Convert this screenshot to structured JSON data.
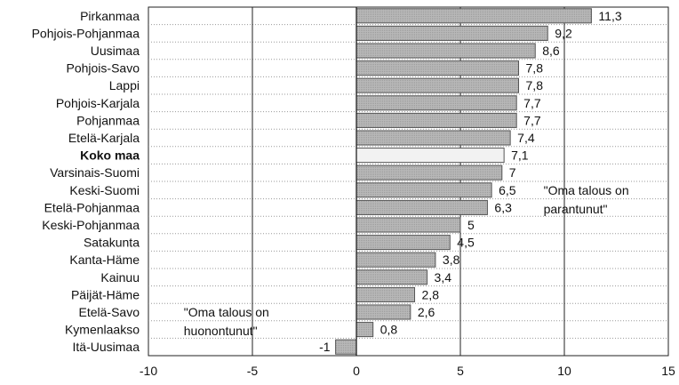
{
  "chart_data": {
    "type": "bar",
    "orientation": "horizontal",
    "categories": [
      "Pirkanmaa",
      "Pohjois-Pohjanmaa",
      "Uusimaa",
      "Pohjois-Savo",
      "Lappi",
      "Pohjois-Karjala",
      "Pohjanmaa",
      "Etelä-Karjala",
      "Koko maa",
      "Varsinais-Suomi",
      "Keski-Suomi",
      "Etelä-Pohjanmaa",
      "Keski-Pohjanmaa",
      "Satakunta",
      "Kanta-Häme",
      "Kainuu",
      "Päijät-Häme",
      "Etelä-Savo",
      "Kymenlaakso",
      "Itä-Uusimaa"
    ],
    "values": [
      11.3,
      9.2,
      8.6,
      7.8,
      7.8,
      7.7,
      7.7,
      7.4,
      7.1,
      7,
      6.5,
      6.3,
      5,
      4.5,
      3.8,
      3.4,
      2.8,
      2.6,
      0.8,
      -1
    ],
    "value_labels": [
      "11,3",
      "9,2",
      "8,6",
      "7,8",
      "7,8",
      "7,7",
      "7,7",
      "7,4",
      "7,1",
      "7",
      "6,5",
      "6,3",
      "5",
      "4,5",
      "3,8",
      "3,4",
      "2,8",
      "2,6",
      "0,8",
      "-1"
    ],
    "highlight_category": "Koko maa",
    "xlim": [
      -10,
      15
    ],
    "xticks": [
      -10,
      -5,
      0,
      5,
      10,
      15
    ],
    "xtick_labels": [
      "-10",
      "-5",
      "0",
      "5",
      "10",
      "15"
    ],
    "vertical_gridlines": true,
    "horizontal_dotted_gridlines": true,
    "annotations": [
      {
        "lines": [
          "\"Oma talous on",
          "parantunut\""
        ],
        "anchor_x": 9,
        "anchor_category": "Keski-Suomi"
      },
      {
        "lines": [
          "\"Oma talous on",
          "huonontunut\""
        ],
        "anchor_x": -8.3,
        "anchor_category": "Etelä-Savo"
      }
    ],
    "colors": {
      "bar": "#b4b4b4",
      "highlight_bar": "#f2f2f2",
      "bar_edge": "#555555",
      "grid": "#222222",
      "dotted_grid": "#9a9a9a"
    }
  }
}
